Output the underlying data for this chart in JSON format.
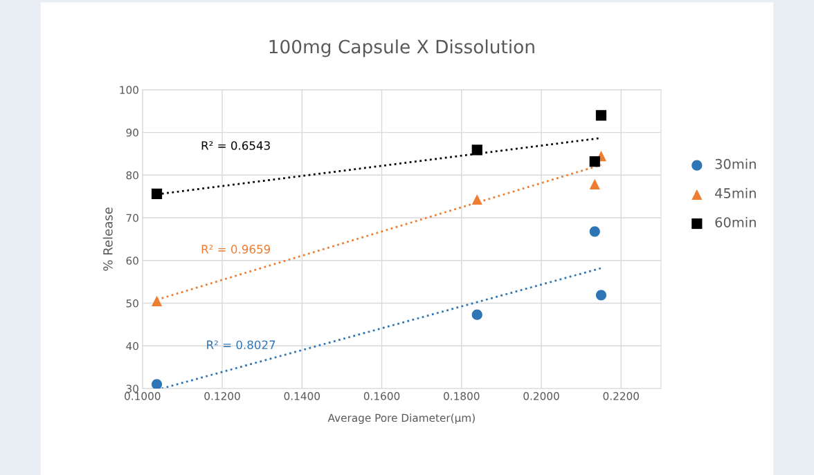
{
  "chart_data": {
    "type": "scatter",
    "title": "100mg Capsule X Dissolution",
    "xlabel": "Average Pore Diameter(µm)",
    "ylabel": "% Release",
    "xlim": [
      0.1,
      0.23
    ],
    "xticks": [
      {
        "value": 0.1,
        "label": "0.1000"
      },
      {
        "value": 0.12,
        "label": "0.1200"
      },
      {
        "value": 0.14,
        "label": "0.1400"
      },
      {
        "value": 0.16,
        "label": "0.1600"
      },
      {
        "value": 0.18,
        "label": "0.1800"
      },
      {
        "value": 0.2,
        "label": "0.2000"
      },
      {
        "value": 0.22,
        "label": "0.2200"
      }
    ],
    "ylim": [
      30,
      100
    ],
    "yticks": [
      30,
      40,
      50,
      60,
      70,
      80,
      90,
      100
    ],
    "grid": true,
    "legend": "right",
    "series": [
      {
        "name": "30min",
        "color": "#2e75b6",
        "marker": "circle",
        "x": [
          0.1036,
          0.1839,
          0.2134,
          0.215
        ],
        "values": [
          31.0,
          47.3,
          66.8,
          51.9
        ]
      },
      {
        "name": "45min",
        "color": "#ed7d31",
        "marker": "triangle",
        "x": [
          0.1036,
          0.1839,
          0.2134,
          0.215
        ],
        "values": [
          50.5,
          74.3,
          77.9,
          84.5
        ]
      },
      {
        "name": "60min",
        "color": "#000000",
        "marker": "square",
        "x": [
          0.1036,
          0.1839,
          0.2134,
          0.215
        ],
        "values": [
          75.6,
          85.9,
          83.2,
          94.0
        ]
      },
      {
        "type": "line",
        "color": "#2e75b6",
        "line_style": "dotted",
        "x": [
          0.1048,
          0.215
        ],
        "values": [
          30.0,
          58.2
        ]
      },
      {
        "type": "line",
        "color": "#ed7d31",
        "line_style": "dotted",
        "x": [
          0.1036,
          0.215
        ],
        "values": [
          50.8,
          82.4
        ]
      },
      {
        "type": "line",
        "color": "#000000",
        "line_style": "dotted",
        "x": [
          0.1036,
          0.215
        ],
        "values": [
          75.5,
          88.7
        ]
      }
    ],
    "annotations": [
      "R² = 0.8027",
      "R² = 0.9659",
      "R² = 0.6543"
    ]
  }
}
